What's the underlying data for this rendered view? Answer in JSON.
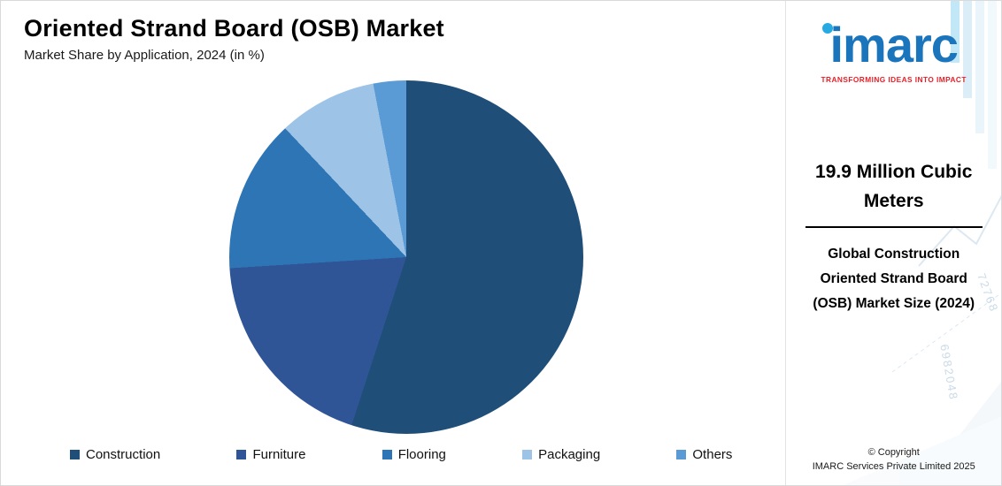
{
  "header": {
    "title": "Oriented Strand Board (OSB) Market",
    "subtitle": "Market Share by Application, 2024 (in %)"
  },
  "chart_data": {
    "type": "pie",
    "title": "Oriented Strand Board (OSB) Market",
    "subtitle": "Market Share by Application, 2024 (in %)",
    "labels": [
      "Construction",
      "Furniture",
      "Flooring",
      "Packaging",
      "Others"
    ],
    "values": [
      55,
      19,
      14,
      9,
      3
    ],
    "unit": "%",
    "colors": [
      "#1F4E79",
      "#2F5597",
      "#2E75B6",
      "#9DC3E6",
      "#5B9BD5"
    ],
    "start_angle_deg": 0,
    "direction": "clockwise",
    "legend_position": "bottom"
  },
  "sidebar": {
    "logo_text": "imarc",
    "tagline": "TRANSFORMING IDEAS INTO IMPACT",
    "stat_value": "19.9 Million Cubic Meters",
    "stat_label": "Global Construction Oriented Strand Board (OSB) Market Size (2024)",
    "copyright_line1": "© Copyright",
    "copyright_line2": "IMARC Services Private Limited 2025",
    "brand_blue": "#1B75BC",
    "brand_cyan": "#27AAE1",
    "tagline_color": "#ED1C24",
    "decor_numbers": [
      "6982048",
      "72768"
    ]
  }
}
